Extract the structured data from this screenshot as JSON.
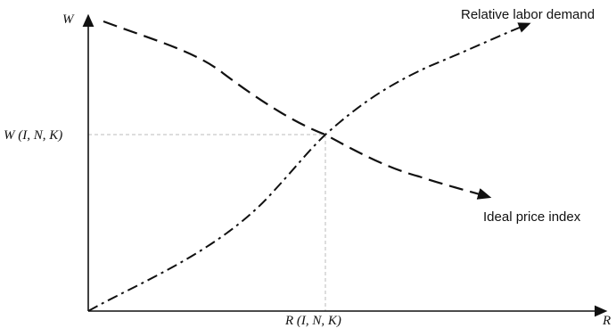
{
  "axes": {
    "y_label": "W",
    "x_label": "R"
  },
  "equilibrium": {
    "w_label": "W (I, N, K)",
    "r_label": "R (I, N, K)"
  },
  "curves": {
    "relative_labor_demand": {
      "label": "Relative labor demand",
      "style": "dash-dot",
      "color": "#111111"
    },
    "ideal_price_index": {
      "label": "Ideal price index",
      "style": "dashed",
      "color": "#111111"
    }
  },
  "guide_color": "#bbbbbb"
}
